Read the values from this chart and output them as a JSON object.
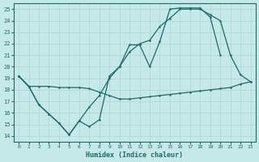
{
  "xlabel": "Humidex (Indice chaleur)",
  "bg_color": "#c5e8e8",
  "grid_color": "#b0d4d4",
  "line_color": "#1e6b6b",
  "xlim": [
    -0.5,
    23.5
  ],
  "ylim": [
    13.5,
    25.5
  ],
  "yticks": [
    14,
    15,
    16,
    17,
    18,
    19,
    20,
    21,
    22,
    23,
    24,
    25
  ],
  "xticks": [
    0,
    1,
    2,
    3,
    4,
    5,
    6,
    7,
    8,
    9,
    10,
    11,
    12,
    13,
    14,
    15,
    16,
    17,
    18,
    19,
    20,
    21,
    22,
    23
  ],
  "line1_x": [
    0,
    1,
    2,
    3,
    4,
    5,
    6,
    7,
    8,
    9,
    10,
    11,
    12,
    13,
    14,
    15,
    16,
    17,
    18,
    19,
    20,
    21,
    22,
    23
  ],
  "line1_y": [
    19.2,
    18.3,
    18.3,
    18.3,
    18.2,
    18.2,
    18.2,
    18.1,
    17.8,
    17.5,
    17.2,
    17.2,
    17.3,
    17.4,
    17.5,
    17.6,
    17.7,
    17.8,
    17.9,
    18.0,
    18.1,
    18.2,
    18.5,
    18.7
  ],
  "line2_x": [
    0,
    1,
    2,
    3,
    4,
    5,
    6,
    7,
    8,
    9,
    10,
    11,
    12,
    13,
    14,
    15,
    16,
    17,
    18,
    19,
    20
  ],
  "line2_y": [
    19.2,
    18.3,
    16.7,
    15.9,
    15.1,
    14.1,
    15.3,
    14.8,
    15.4,
    19.2,
    20.0,
    21.9,
    21.9,
    20.0,
    22.2,
    25.0,
    25.1,
    25.1,
    25.1,
    24.3,
    21.0
  ],
  "line3_x": [
    0,
    1,
    2,
    3,
    4,
    5,
    6,
    7,
    8,
    9,
    10,
    11,
    12,
    13,
    14,
    15,
    16,
    17,
    18,
    19,
    20,
    21,
    22,
    23
  ],
  "line3_y": [
    19.2,
    18.3,
    16.7,
    15.9,
    15.1,
    14.1,
    15.3,
    16.5,
    17.5,
    19.0,
    20.0,
    21.3,
    22.0,
    22.3,
    23.5,
    24.2,
    25.0,
    25.0,
    25.0,
    24.5,
    24.0,
    21.0,
    19.3,
    18.7
  ]
}
